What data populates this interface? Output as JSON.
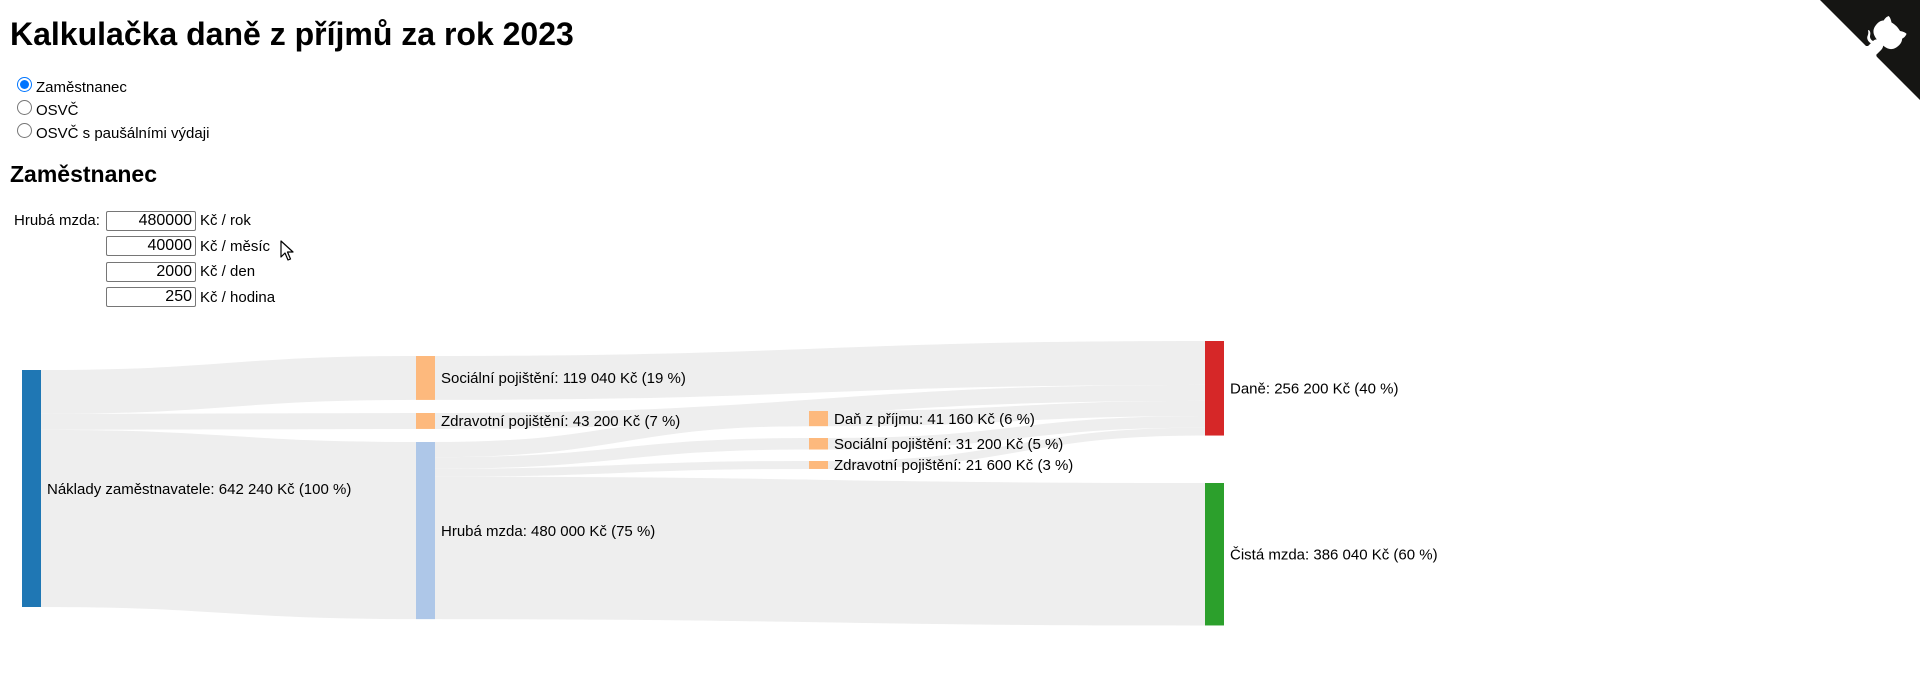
{
  "page": {
    "title": "Kalkulačka daně z příjmů za rok 2023",
    "section_title": "Zaměstnanec"
  },
  "mode_options": [
    {
      "label": "Zaměstnanec",
      "checked": true
    },
    {
      "label": "OSVČ",
      "checked": false
    },
    {
      "label": "OSVČ s paušálními výdaji",
      "checked": false
    }
  ],
  "wage": {
    "label": "Hrubá mzda:",
    "rows": [
      {
        "value": "480000",
        "unit": "Kč / rok"
      },
      {
        "value": "40000",
        "unit": "Kč / měsíc"
      },
      {
        "value": "2000",
        "unit": "Kč / den"
      },
      {
        "value": "250",
        "unit": "Kč / hodina"
      }
    ]
  },
  "icons": {
    "github_corner": "github-octocat-icon",
    "cursor": "mouse-pointer-icon"
  },
  "colors": {
    "employer_costs": "#1f77b4",
    "insurance": "#fdb97d",
    "gross_wage": "#aec7e8",
    "taxes": "#d62728",
    "net_wage": "#2ca02c",
    "link": "#eeeeee"
  },
  "chart_data": {
    "type": "sankey",
    "nodes": [
      {
        "id": "costs",
        "label": "Náklady zaměstnavatele: 642 240 Kč (100 %)",
        "value": 642240,
        "color": "#1f77b4"
      },
      {
        "id": "soc1",
        "label": "Sociální pojištění: 119 040 Kč (19 %)",
        "value": 119040,
        "color": "#fdb97d"
      },
      {
        "id": "zdr1",
        "label": "Zdravotní pojištění: 43 200 Kč (7 %)",
        "value": 43200,
        "color": "#fdb97d"
      },
      {
        "id": "gross",
        "label": "Hrubá mzda: 480 000 Kč (75 %)",
        "value": 480000,
        "color": "#aec7e8"
      },
      {
        "id": "tax",
        "label": "Daň z příjmu: 41 160 Kč (6 %)",
        "value": 41160,
        "color": "#fdb97d"
      },
      {
        "id": "soc2",
        "label": "Sociální pojištění: 31 200 Kč (5 %)",
        "value": 31200,
        "color": "#fdb97d"
      },
      {
        "id": "zdr2",
        "label": "Zdravotní pojištění: 21 600 Kč (3 %)",
        "value": 21600,
        "color": "#fdb97d"
      },
      {
        "id": "taxes",
        "label": "Daně: 256 200 Kč (40 %)",
        "value": 256200,
        "color": "#d62728"
      },
      {
        "id": "net",
        "label": "Čistá mzda: 386 040 Kč (60 %)",
        "value": 386040,
        "color": "#2ca02c"
      }
    ],
    "links": [
      {
        "source": "costs",
        "target": "soc1",
        "value": 119040
      },
      {
        "source": "costs",
        "target": "zdr1",
        "value": 43200
      },
      {
        "source": "costs",
        "target": "gross",
        "value": 480000
      },
      {
        "source": "soc1",
        "target": "taxes",
        "value": 119040
      },
      {
        "source": "zdr1",
        "target": "taxes",
        "value": 43200
      },
      {
        "source": "gross",
        "target": "tax",
        "value": 41160
      },
      {
        "source": "gross",
        "target": "soc2",
        "value": 31200
      },
      {
        "source": "gross",
        "target": "zdr2",
        "value": 21600
      },
      {
        "source": "gross",
        "target": "net",
        "value": 386040
      },
      {
        "source": "tax",
        "target": "taxes",
        "value": 41160
      },
      {
        "source": "soc2",
        "target": "taxes",
        "value": 31200
      },
      {
        "source": "zdr2",
        "target": "taxes",
        "value": 21600
      }
    ]
  }
}
